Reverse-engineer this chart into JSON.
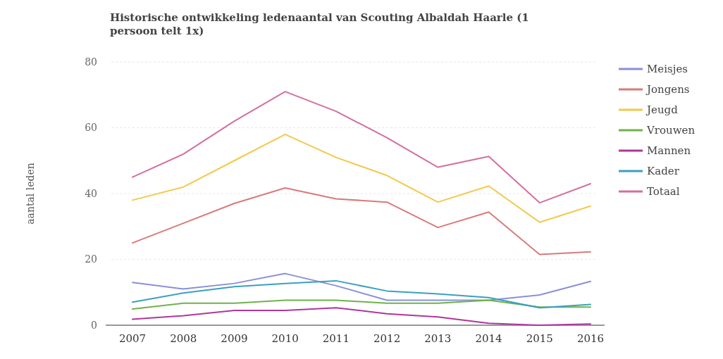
{
  "chart_data": {
    "type": "line",
    "title": "Historische ontwikkeling ledenaantal van Scouting Albaldah Haarle (1 persoon telt 1x)",
    "ylabel": "aantal leden",
    "categories": [
      "2007",
      "2008",
      "2009",
      "2010",
      "2011",
      "2012",
      "2013",
      "2014",
      "2015",
      "2016"
    ],
    "ylim": [
      0,
      80
    ],
    "yticks": [
      0,
      20,
      40,
      60,
      80
    ],
    "grid": "y",
    "legend": "right",
    "marker": "none",
    "line_style": "solid",
    "series": [
      {
        "name": "Meisjes",
        "color": "#8a8fd8",
        "values": [
          13,
          11,
          12.7,
          15.7,
          12,
          7.6,
          7.6,
          7.6,
          9.2,
          13.3
        ]
      },
      {
        "name": "Jongens",
        "color": "#d97a7a",
        "values": [
          25,
          31,
          37,
          41.7,
          38.4,
          37.4,
          29.7,
          34.4,
          21.5,
          22.3
        ]
      },
      {
        "name": "Jeugd",
        "color": "#f2c94c",
        "values": [
          38,
          42,
          50,
          58,
          51,
          45.5,
          37.4,
          42.3,
          31.3,
          36.2
        ]
      },
      {
        "name": "Vrouwen",
        "color": "#6fb24a",
        "values": [
          4.9,
          6.7,
          6.7,
          7.6,
          7.6,
          6.7,
          6.7,
          7.6,
          5.5,
          5.5
        ]
      },
      {
        "name": "Mannen",
        "color": "#b0369a",
        "values": [
          1.8,
          2.9,
          4.5,
          4.5,
          5.3,
          3.5,
          2.5,
          0.6,
          0,
          0.4
        ]
      },
      {
        "name": "Kader",
        "color": "#3aa0c0",
        "values": [
          7,
          9.8,
          11.7,
          12.7,
          13.5,
          10.4,
          9.5,
          8.4,
          5.3,
          6.3
        ]
      },
      {
        "name": "Totaal",
        "color": "#d36f9f",
        "values": [
          45,
          52,
          62,
          71,
          65,
          57,
          48,
          51.3,
          37.2,
          43
        ]
      }
    ]
  }
}
